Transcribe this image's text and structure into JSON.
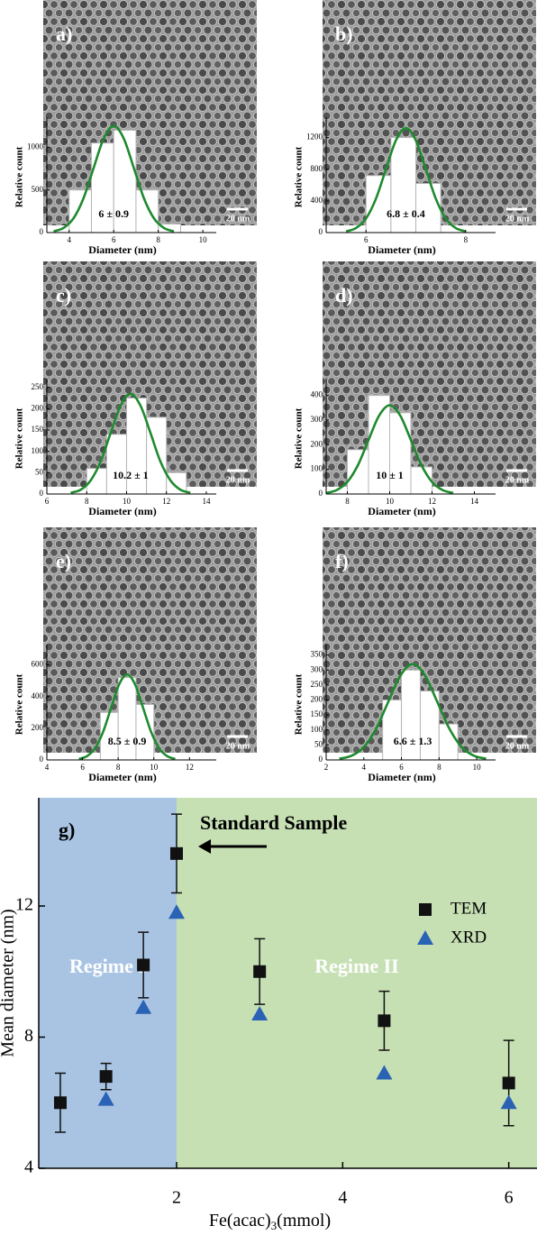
{
  "chart_data": [
    {
      "type": "histogram",
      "panel_label": "a)",
      "x_label": "Diameter (nm)",
      "y_label": "Relative count",
      "annotation": "6 ± 0.9",
      "scale_bar": "20 nm",
      "bins": [
        4,
        5,
        6,
        7,
        8,
        9
      ],
      "counts": [
        500,
        1050,
        1200,
        500,
        100
      ],
      "bar_color": "#ffffff",
      "fit": {
        "color": "#1e8a2e",
        "x": [
          3.3,
          3.75,
          4.2,
          4.65,
          5.1,
          5.55,
          6,
          6.45,
          6.9,
          7.35,
          7.8,
          8.25,
          8.7
        ],
        "values": [
          14,
          55,
          169,
          406,
          759,
          1103,
          1250,
          1103,
          759,
          406,
          169,
          55,
          14
        ]
      },
      "xlim": [
        3,
        10.6
      ],
      "xticks": [
        4,
        6,
        8,
        10
      ],
      "ylim": [
        0,
        1300
      ],
      "yticks": [
        0,
        500,
        1000
      ]
    },
    {
      "type": "histogram",
      "panel_label": "b)",
      "x_label": "Diameter (nm)",
      "y_label": "Relative count",
      "annotation": "6.8 ± 0.4",
      "scale_bar": "20 nm",
      "bins": [
        6,
        6.5,
        7,
        7.5
      ],
      "counts": [
        720,
        1200,
        620
      ],
      "bar_color": "#ffffff",
      "fit": {
        "color": "#1e8a2e",
        "x": [
          5.6,
          5.8,
          6.0,
          6.2,
          6.4,
          6.6,
          6.8,
          7.0,
          7.2,
          7.4,
          7.6,
          7.8,
          8.0
        ],
        "values": [
          15,
          58,
          178,
          429,
          801,
          1164,
          1320,
          1164,
          801,
          429,
          178,
          58,
          15
        ]
      },
      "xlim": [
        5.2,
        8.6
      ],
      "xticks": [
        6,
        8
      ],
      "ylim": [
        0,
        1400
      ],
      "yticks": [
        0,
        400,
        800,
        1200
      ]
    },
    {
      "type": "histogram",
      "panel_label": "c)",
      "x_label": "Diameter (nm)",
      "y_label": "Relative count",
      "annotation": "10.2 ± 1",
      "scale_bar": "20 nm",
      "bins": [
        8,
        9,
        10,
        11,
        12,
        13
      ],
      "counts": [
        60,
        140,
        225,
        180,
        50
      ],
      "bar_color": "#ffffff",
      "fit": {
        "color": "#1e8a2e",
        "x": [
          7.2,
          7.7,
          8.2,
          8.7,
          9.2,
          9.7,
          10.2,
          10.7,
          11.2,
          11.7,
          12.2,
          12.7,
          13.2
        ],
        "values": [
          3,
          10,
          32,
          76,
          143,
          207,
          235,
          207,
          143,
          76,
          32,
          10,
          3
        ]
      },
      "xlim": [
        6,
        14.5
      ],
      "xticks": [
        6,
        8,
        10,
        12,
        14
      ],
      "ylim": [
        0,
        260
      ],
      "yticks": [
        0,
        50,
        100,
        150,
        200,
        250
      ]
    },
    {
      "type": "histogram",
      "panel_label": "d)",
      "x_label": "Diameter (nm)",
      "y_label": "Relative count",
      "annotation": "10 ± 1",
      "scale_bar": "20 nm",
      "bins": [
        8,
        9,
        10,
        11,
        12
      ],
      "counts": [
        180,
        400,
        330,
        110
      ],
      "bar_color": "#ffffff",
      "fit": {
        "color": "#1e8a2e",
        "x": [
          7,
          7.5,
          8,
          8.5,
          9,
          9.5,
          10,
          10.5,
          11,
          11.5,
          12,
          12.5,
          13
        ],
        "values": [
          4,
          16,
          49,
          117,
          219,
          318,
          360,
          318,
          219,
          117,
          49,
          16,
          4
        ]
      },
      "xlim": [
        7,
        15
      ],
      "xticks": [
        8,
        10,
        12,
        14
      ],
      "ylim": [
        0,
        450
      ],
      "yticks": [
        0,
        100,
        200,
        300,
        400
      ]
    },
    {
      "type": "histogram",
      "panel_label": "e)",
      "x_label": "Diameter (nm)",
      "y_label": "Relative count",
      "annotation": "8.5 ± 0.9",
      "scale_bar": "20 nm",
      "bins": [
        7,
        8,
        9,
        10
      ],
      "counts": [
        300,
        520,
        350
      ],
      "bar_color": "#ffffff",
      "fit": {
        "color": "#1e8a2e",
        "x": [
          5.8,
          6.25,
          6.7,
          7.15,
          7.6,
          8.05,
          8.5,
          8.95,
          9.4,
          9.85,
          10.3,
          10.75,
          11.2
        ],
        "values": [
          6,
          24,
          73,
          176,
          328,
          476,
          540,
          476,
          328,
          176,
          73,
          24,
          6
        ]
      },
      "xlim": [
        4,
        13.5
      ],
      "xticks": [
        4,
        6,
        8,
        10,
        12
      ],
      "ylim": [
        0,
        700
      ],
      "yticks": [
        0,
        200,
        400,
        600
      ]
    },
    {
      "type": "histogram",
      "panel_label": "f)",
      "x_label": "Diameter (nm)",
      "y_label": "Relative count",
      "annotation": "6.6 ± 1.3",
      "scale_bar": "20 nm",
      "bins": [
        5,
        6,
        7,
        8,
        9
      ],
      "counts": [
        200,
        300,
        230,
        120
      ],
      "bar_color": "#ffffff",
      "fit": {
        "color": "#1e8a2e",
        "x": [
          2.7,
          3.35,
          4.0,
          4.65,
          5.3,
          5.95,
          6.6,
          7.25,
          7.9,
          8.55,
          9.2,
          9.85,
          10.5
        ],
        "values": [
          4,
          14,
          43,
          104,
          194,
          282,
          320,
          282,
          194,
          104,
          43,
          14,
          4
        ]
      },
      "xlim": [
        2,
        11
      ],
      "xticks": [
        2,
        4,
        6,
        8,
        10
      ],
      "ylim": [
        0,
        370
      ],
      "yticks": [
        0,
        50,
        100,
        150,
        200,
        250,
        300,
        350
      ]
    },
    {
      "type": "scatter",
      "panel_label": "g)",
      "y_label": "Mean diameter (nm)",
      "x_label": {
        "text": "Fe(acac)",
        "subscript": "3",
        "suffix": "(mmol)"
      },
      "annotation": "Standard Sample",
      "regions": [
        {
          "label": "Regime I",
          "from": 0.34,
          "to": 2,
          "color": "#a9c4e3"
        },
        {
          "label": "Regime II",
          "from": 2,
          "to": 6.34,
          "color": "#c6e0b4"
        }
      ],
      "x": [
        0.6,
        1.15,
        1.6,
        2,
        3,
        4.5,
        6
      ],
      "series": [
        {
          "name": "TEM",
          "color": "#111111",
          "marker": "square",
          "values": [
            6,
            6.8,
            10.2,
            13.6,
            10,
            8.5,
            6.6
          ],
          "errors": [
            0.9,
            0.4,
            1,
            1.2,
            1,
            0.9,
            1.3
          ]
        },
        {
          "name": "XRD",
          "color": "#2a62b5",
          "marker": "triangle",
          "values": [
            null,
            6.1,
            8.9,
            11.8,
            8.7,
            6.9,
            6.0
          ]
        }
      ],
      "xlim": [
        0.34,
        6.34
      ],
      "xticks": [
        2,
        4,
        6
      ],
      "ylim": [
        4,
        15.3
      ],
      "yticks": [
        4,
        8,
        12
      ]
    }
  ]
}
